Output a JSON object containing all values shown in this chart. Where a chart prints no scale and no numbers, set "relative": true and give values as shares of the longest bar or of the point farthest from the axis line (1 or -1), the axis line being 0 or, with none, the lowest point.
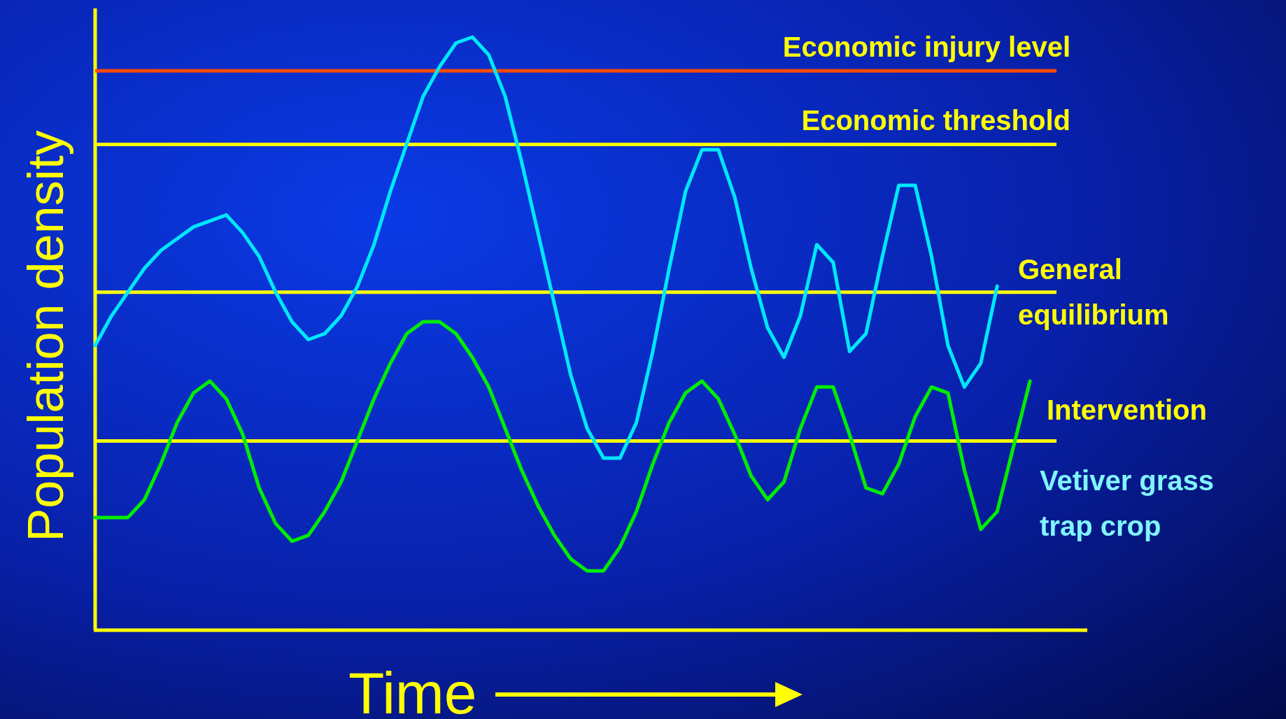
{
  "chart_data": {
    "type": "line",
    "relative": true,
    "xlabel": "Time",
    "ylabel": "Population density",
    "line_style": "solid",
    "categories": [
      null,
      null,
      null,
      null,
      null,
      null,
      null,
      null,
      null,
      null,
      null,
      null,
      null,
      null,
      null,
      null,
      null,
      null,
      null,
      null,
      null,
      null,
      null,
      null,
      null,
      null,
      null,
      null,
      null,
      null,
      null,
      null,
      null,
      null,
      null,
      null,
      null,
      null,
      null,
      null,
      null,
      null,
      null,
      null,
      null,
      null,
      null,
      null,
      null,
      null,
      null,
      null,
      null,
      null,
      null,
      null,
      null,
      null
    ],
    "series": [
      {
        "color": "#00e8ff",
        "values": [
          0.48,
          0.53,
          0.57,
          0.61,
          0.64,
          0.66,
          0.68,
          0.69,
          0.7,
          0.67,
          0.63,
          0.57,
          0.52,
          0.49,
          0.5,
          0.53,
          0.58,
          0.65,
          0.74,
          0.82,
          0.9,
          0.95,
          0.99,
          1.0,
          0.97,
          0.9,
          0.79,
          0.67,
          0.55,
          0.43,
          0.34,
          0.29,
          0.29,
          0.35,
          0.47,
          0.61,
          0.74,
          0.81,
          0.81,
          0.73,
          0.61,
          0.51,
          0.46,
          0.53,
          0.65,
          0.62,
          0.47,
          0.5,
          0.63,
          0.75,
          0.75,
          0.63,
          0.48,
          0.41,
          0.45,
          0.58,
          null,
          null
        ]
      },
      {
        "color": "#00ee00",
        "values": [
          0.19,
          0.19,
          0.19,
          0.22,
          0.28,
          0.35,
          0.4,
          0.42,
          0.39,
          0.33,
          0.24,
          0.18,
          0.15,
          0.16,
          0.2,
          0.25,
          0.32,
          0.39,
          0.45,
          0.5,
          0.52,
          0.52,
          0.5,
          0.46,
          0.41,
          0.34,
          0.27,
          0.21,
          0.16,
          0.12,
          0.1,
          0.1,
          0.14,
          0.2,
          0.28,
          0.35,
          0.4,
          0.42,
          0.39,
          0.33,
          0.26,
          0.22,
          0.25,
          0.34,
          0.41,
          0.41,
          0.33,
          0.24,
          0.23,
          0.28,
          0.36,
          0.41,
          0.4,
          0.27,
          0.17,
          0.2,
          0.31,
          0.42
        ]
      }
    ],
    "ref_lines": [
      {
        "axis": "y",
        "value": 0.943,
        "label": "Economic injury level",
        "color": "#ff4a00"
      },
      {
        "axis": "y",
        "value": 0.819,
        "label": "Economic threshold",
        "color": "#ffff00"
      },
      {
        "axis": "y",
        "value": 0.57,
        "label": "General equilibrium",
        "color": "#ffff00"
      },
      {
        "axis": "y",
        "value": 0.319,
        "label": "Intervention",
        "color": "#ffff00"
      }
    ],
    "annotations": [
      "Vetiver grass trap crop"
    ]
  }
}
